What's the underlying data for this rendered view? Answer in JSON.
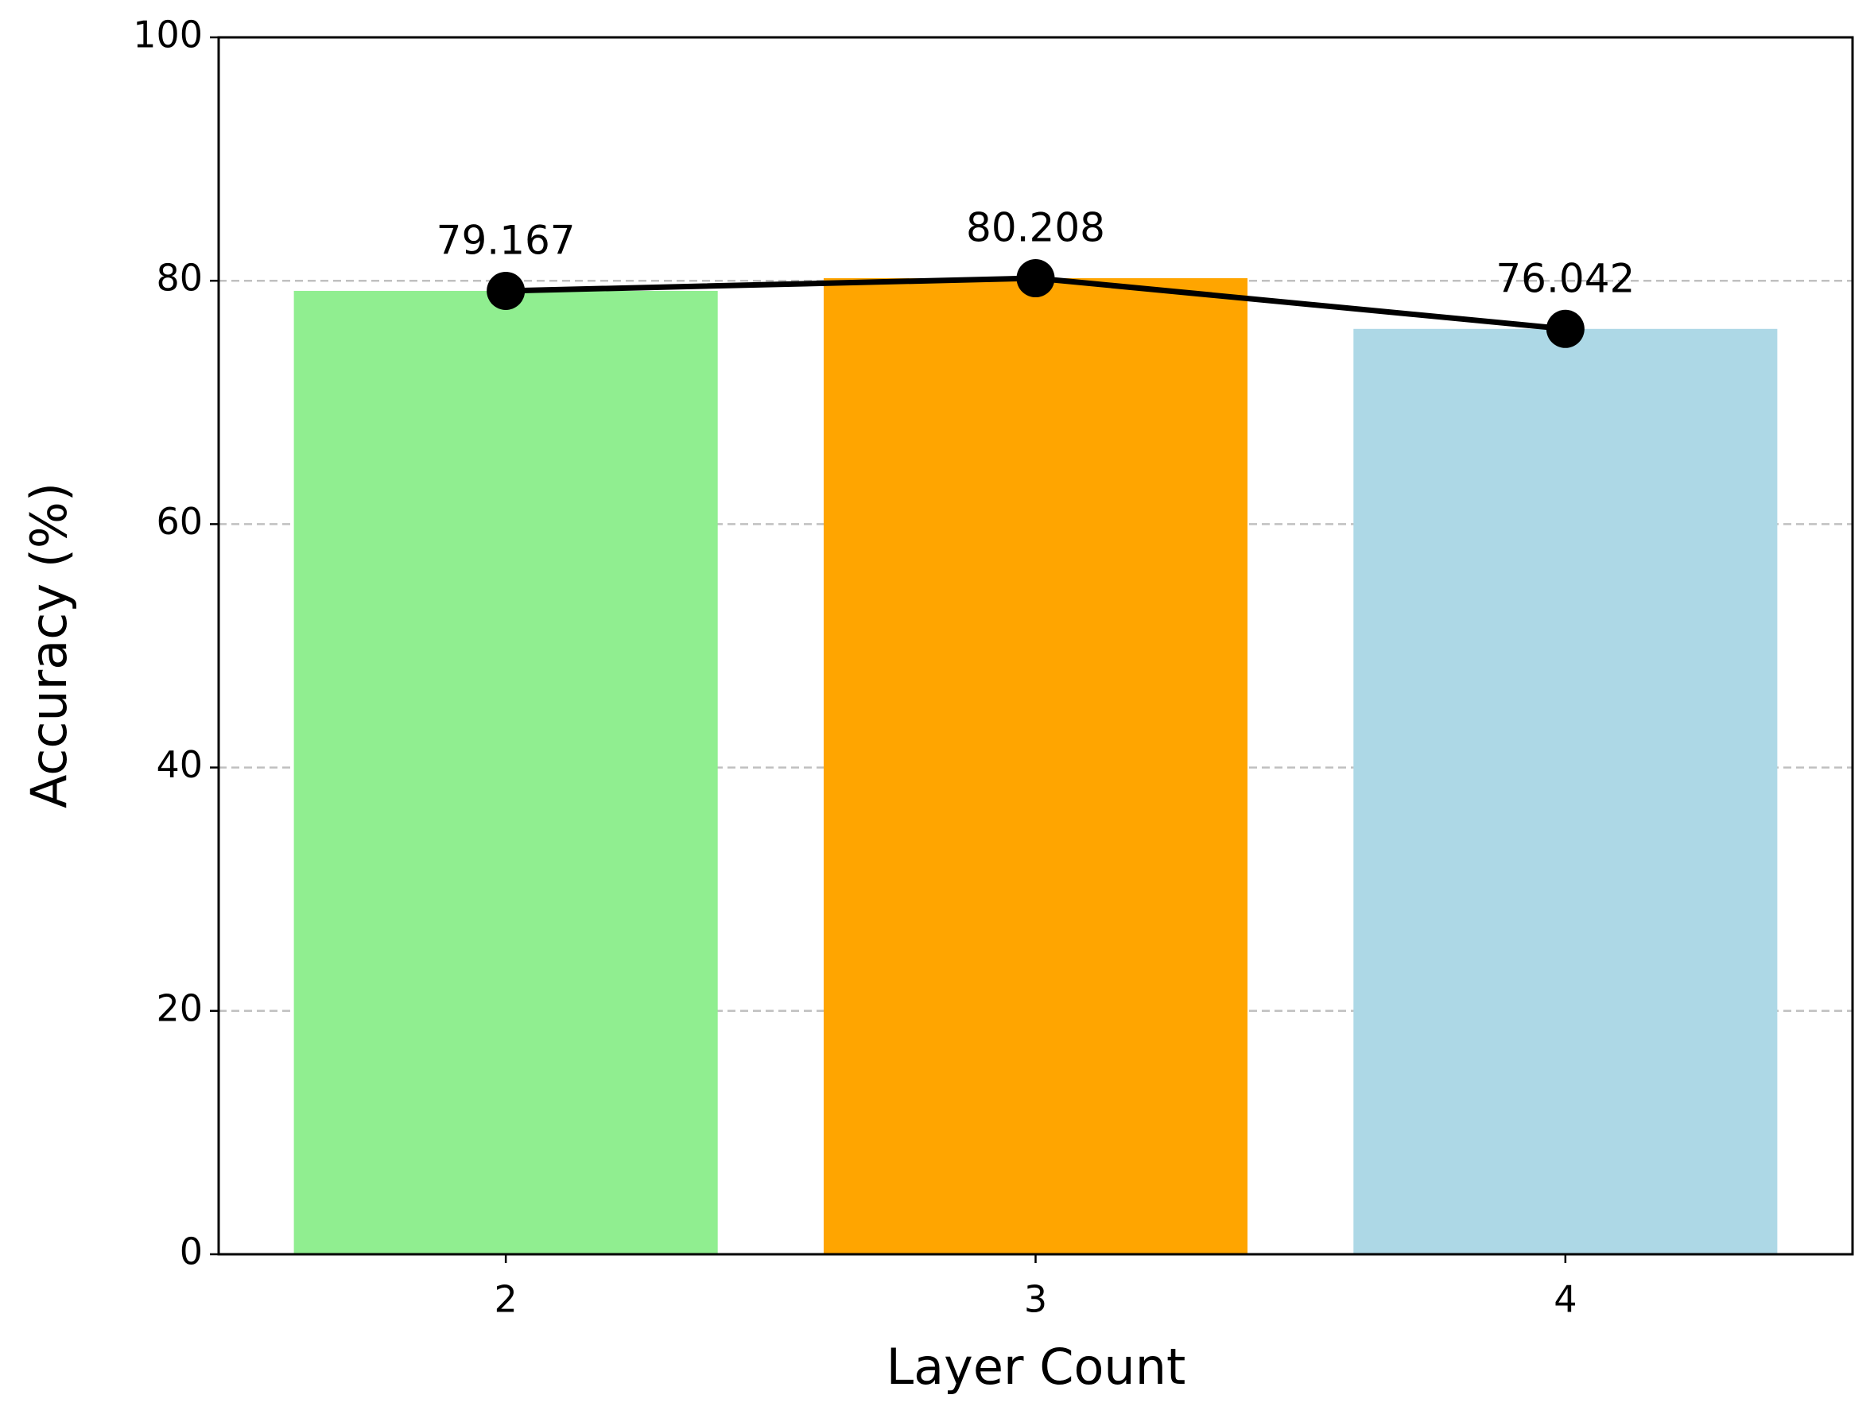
{
  "chart_data": {
    "type": "bar",
    "xlabel": "Layer Count",
    "ylabel": "Accuracy (%)",
    "categories": [
      "2",
      "3",
      "4"
    ],
    "values": [
      79.167,
      80.208,
      76.042
    ],
    "colors": [
      "#90ee90",
      "#ffa500",
      "#add8e6"
    ],
    "line_overlay": {
      "color": "#000000",
      "markers": true
    },
    "data_labels": true,
    "ylim": [
      0,
      100
    ],
    "yticks": [
      0,
      20,
      40,
      60,
      80,
      100
    ],
    "grid": true
  }
}
